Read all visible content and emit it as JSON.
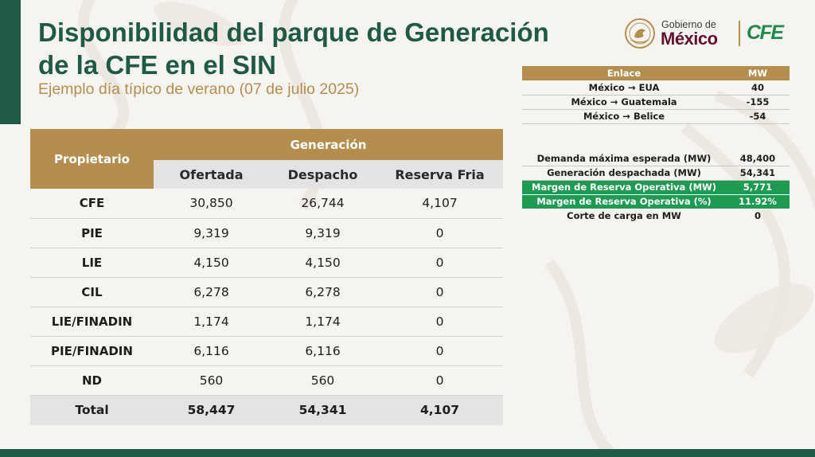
{
  "header": {
    "title_line1": "Disponibilidad del parque de Generación",
    "title_line2": "de la CFE en el SIN",
    "subtitle": "Ejemplo día típico de verano (07 de julio 2025)"
  },
  "logos": {
    "gob_line1": "Gobierno de",
    "gob_line2": "México",
    "cfe": "CFE"
  },
  "generation_table": {
    "owner_header": "Propietario",
    "group_header": "Generación",
    "columns": [
      "Ofertada",
      "Despacho",
      "Reserva Fria"
    ],
    "rows": [
      {
        "owner": "CFE",
        "ofertada": "30,850",
        "despacho": "26,744",
        "reserva": "4,107"
      },
      {
        "owner": "PIE",
        "ofertada": "9,319",
        "despacho": "9,319",
        "reserva": "0"
      },
      {
        "owner": "LIE",
        "ofertada": "4,150",
        "despacho": "4,150",
        "reserva": "0"
      },
      {
        "owner": "CIL",
        "ofertada": "6,278",
        "despacho": "6,278",
        "reserva": "0"
      },
      {
        "owner": "LIE/FINADIN",
        "ofertada": "1,174",
        "despacho": "1,174",
        "reserva": "0"
      },
      {
        "owner": "PIE/FINADIN",
        "ofertada": "6,116",
        "despacho": "6,116",
        "reserva": "0"
      },
      {
        "owner": "ND",
        "ofertada": "560",
        "despacho": "560",
        "reserva": "0"
      }
    ],
    "total": {
      "owner": "Total",
      "ofertada": "58,447",
      "despacho": "54,341",
      "reserva": "4,107"
    }
  },
  "links_table": {
    "headers": [
      "Enlace",
      "MW"
    ],
    "rows": [
      {
        "enlace": "México → EUA",
        "mw": "40"
      },
      {
        "enlace": "México → Guatemala",
        "mw": "-155"
      },
      {
        "enlace": "México → Belice",
        "mw": "-54"
      }
    ]
  },
  "summary_table": {
    "rows": [
      {
        "label": "Demanda máxima esperada (MW)",
        "value": "48,400"
      },
      {
        "label": "Generación despachada (MW)",
        "value": "54,341"
      },
      {
        "label": "Margen de Reserva Operativa (MW)",
        "value": "5,771"
      },
      {
        "label": "Margen de Reserva Operativa (%)",
        "value": "11.92%"
      },
      {
        "label": "Corte de carga en MW",
        "value": "0"
      }
    ]
  },
  "colors": {
    "primary_green": "#1f5a46",
    "gold": "#b38e4e",
    "highlight_green": "#1e9a52",
    "guinda": "#611232"
  }
}
